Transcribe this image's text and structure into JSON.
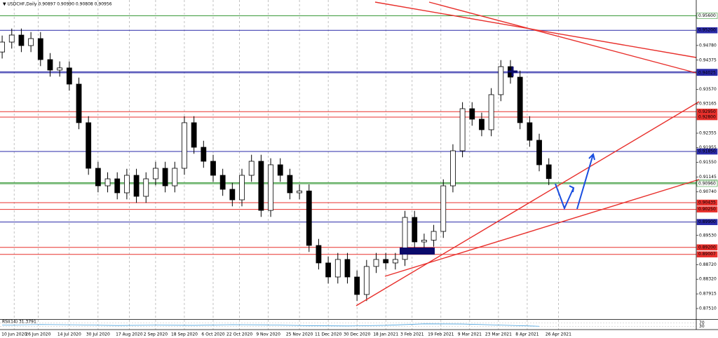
{
  "chart_data": {
    "type": "candlestick",
    "title": "▼ USDCHF,Daily  0.90897 0.90990 0.90808 0.90956",
    "grid": "vertical",
    "up_color": "#ffffff",
    "down_color": "#000000",
    "edge_color": "#000000",
    "x": [
      0,
      4,
      8,
      12,
      16,
      20,
      24,
      28,
      32,
      36,
      40,
      44,
      48,
      52,
      56,
      60,
      64,
      68,
      72,
      76,
      80,
      84,
      88,
      92,
      96,
      100,
      104,
      108,
      112,
      116,
      120,
      124,
      128,
      132,
      136,
      140,
      144,
      148,
      152,
      156,
      160,
      164,
      168,
      172,
      176,
      180,
      184,
      188,
      192,
      196,
      200,
      204,
      208,
      212,
      216,
      220,
      224,
      228
    ],
    "open": [
      0.946,
      0.94874,
      0.95068,
      0.94777,
      0.94971,
      0.9439,
      0.94099,
      0.9416,
      0.93712,
      0.92646,
      0.91386,
      0.90901,
      0.91095,
      0.90708,
      0.91192,
      0.90611,
      0.91095,
      0.91386,
      0.90901,
      0.91386,
      0.92646,
      0.91967,
      0.9158,
      0.91192,
      0.90805,
      0.90514,
      0.91192,
      0.9158,
      0.90223,
      0.91483,
      0.91192,
      0.90708,
      0.9076,
      0.89254,
      0.8877,
      0.88382,
      0.88867,
      0.88382,
      0.87898,
      0.88673,
      0.88867,
      0.8877,
      0.88867,
      0.90029,
      0.89351,
      0.894,
      0.89642,
      0.90901,
      0.9187,
      0.93033,
      0.92743,
      0.92452,
      0.93421,
      0.94196,
      0.93905,
      0.92646,
      0.92161,
      0.91483
    ],
    "high": [
      0.95054,
      0.95248,
      0.95248,
      0.95151,
      0.95151,
      0.9457,
      0.9434,
      0.9434,
      0.93892,
      0.92826,
      0.91566,
      0.91275,
      0.91275,
      0.91372,
      0.91372,
      0.91275,
      0.91566,
      0.91566,
      0.91566,
      0.92826,
      0.92826,
      0.92147,
      0.9176,
      0.91372,
      0.90985,
      0.91372,
      0.9176,
      0.9176,
      0.91663,
      0.91663,
      0.91372,
      0.9094,
      0.9094,
      0.89434,
      0.8895,
      0.89047,
      0.89047,
      0.88562,
      0.88853,
      0.89047,
      0.89047,
      0.89047,
      0.90209,
      0.90209,
      0.8958,
      0.89822,
      0.91081,
      0.9205,
      0.93213,
      0.93213,
      0.92923,
      0.93601,
      0.94376,
      0.94376,
      0.94085,
      0.92826,
      0.92341,
      0.91663
    ],
    "low": [
      0.9442,
      0.94694,
      0.94597,
      0.94597,
      0.9421,
      0.93919,
      0.93919,
      0.93532,
      0.92466,
      0.91206,
      0.90721,
      0.90721,
      0.90528,
      0.90528,
      0.90431,
      0.90431,
      0.90915,
      0.90721,
      0.90721,
      0.91206,
      0.91787,
      0.914,
      0.91012,
      0.90625,
      0.90334,
      0.90334,
      0.91012,
      0.90043,
      0.90043,
      0.91012,
      0.90528,
      0.90528,
      0.89074,
      0.8859,
      0.88202,
      0.88202,
      0.88202,
      0.87718,
      0.87718,
      0.88493,
      0.8859,
      0.8859,
      0.88687,
      0.89171,
      0.89171,
      0.8922,
      0.89462,
      0.90721,
      0.9169,
      0.92563,
      0.92272,
      0.92272,
      0.93241,
      0.93725,
      0.92466,
      0.91981,
      0.91303,
      0.9092
    ],
    "close": [
      0.94874,
      0.95068,
      0.94777,
      0.94971,
      0.9439,
      0.94099,
      0.9416,
      0.93712,
      0.92646,
      0.91386,
      0.90901,
      0.91095,
      0.90708,
      0.91192,
      0.90611,
      0.91095,
      0.91386,
      0.90901,
      0.91386,
      0.92646,
      0.91967,
      0.9158,
      0.91192,
      0.90805,
      0.90514,
      0.91192,
      0.9158,
      0.90223,
      0.91483,
      0.91192,
      0.90708,
      0.9076,
      0.89254,
      0.8877,
      0.88382,
      0.88867,
      0.88382,
      0.87898,
      0.88673,
      0.88867,
      0.8877,
      0.88867,
      0.90029,
      0.89351,
      0.894,
      0.89642,
      0.90901,
      0.9187,
      0.93033,
      0.92743,
      0.92452,
      0.93421,
      0.94196,
      0.93905,
      0.92646,
      0.92161,
      0.91483,
      0.911
    ],
    "xlim": [
      -0.9,
      289.5
    ],
    "xticks": [
      {
        "value": 5,
        "label": "10 Jun 2020"
      },
      {
        "value": 15,
        "label": "26 Jun 2020"
      },
      {
        "value": 28,
        "label": "14 Jul 2020"
      },
      {
        "value": 40,
        "label": "30 Jul 2020"
      },
      {
        "value": 53,
        "label": "17 Aug 2020"
      },
      {
        "value": 64,
        "label": "2 Sep 2020"
      },
      {
        "value": 76,
        "label": "18 Sep 2020"
      },
      {
        "value": 88,
        "label": "6 Oct 2020"
      },
      {
        "value": 99,
        "label": "22 Oct 2020"
      },
      {
        "value": 111,
        "label": "9 Nov 2020"
      },
      {
        "value": 124,
        "label": "25 Nov 2020"
      },
      {
        "value": 136,
        "label": "11 Dec 2020"
      },
      {
        "value": 148,
        "label": "30 Dec 2020"
      },
      {
        "value": 160,
        "label": "18 Jan 2021"
      },
      {
        "value": 171,
        "label": "3 Feb 2021"
      },
      {
        "value": 183,
        "label": "19 Feb 2021"
      },
      {
        "value": 195,
        "label": "9 Mar 2021"
      },
      {
        "value": 207,
        "label": "23 Mar 2021"
      },
      {
        "value": 219,
        "label": "8 Apr 2021"
      },
      {
        "value": 232,
        "label": "26 Apr 2021"
      }
    ],
    "ylim": [
      0.87219,
      0.96037
    ],
    "yticks": [
      {
        "value": 0.9478,
        "label": "0.94780"
      },
      {
        "value": 0.94375,
        "label": "0.94375"
      },
      {
        "value": 0.9357,
        "label": "0.93570"
      },
      {
        "value": 0.93165,
        "label": "0.93165"
      },
      {
        "value": 0.92355,
        "label": "0.92355"
      },
      {
        "value": 0.91955,
        "label": "0.91955"
      },
      {
        "value": 0.9155,
        "label": "0.91550"
      },
      {
        "value": 0.91145,
        "label": "0.91145"
      },
      {
        "value": 0.9074,
        "label": "0.90740"
      },
      {
        "value": 0.8953,
        "label": "0.89530"
      },
      {
        "value": 0.8872,
        "label": "0.88720"
      },
      {
        "value": 0.8832,
        "label": "0.88320"
      },
      {
        "value": 0.87915,
        "label": "0.87915"
      },
      {
        "value": 0.8751,
        "label": "0.87510"
      }
    ],
    "levels": [
      {
        "value": 0.956,
        "label": "0.95600",
        "color": "#3a9a3a"
      },
      {
        "value": 0.952,
        "label": "0.95200",
        "color": "#2a2aa8"
      },
      {
        "value": 0.9405,
        "label": "0.94050",
        "color": "#2a2aa8"
      },
      {
        "value": 0.94025,
        "label": "0.94025",
        "color": "#2a2aa8"
      },
      {
        "value": 0.9295,
        "label": "0.92950",
        "color": "#e8302c"
      },
      {
        "value": 0.928,
        "label": "0.92800",
        "color": "#e8302c"
      },
      {
        "value": 0.9185,
        "label": "0.91850",
        "color": "#2a2aa8"
      },
      {
        "value": 0.90985,
        "label": "0.90985",
        "color": "#3a9a3a"
      },
      {
        "value": 0.9096,
        "label": "0.90960",
        "color": "#3a9a3a"
      },
      {
        "value": 0.90435,
        "label": "0.90435",
        "color": "#e8302c"
      },
      {
        "value": 0.9025,
        "label": "0.90250",
        "color": "#e8302c"
      },
      {
        "value": 0.899,
        "label": "0.89900",
        "color": "#2a2aa8"
      },
      {
        "value": 0.892,
        "label": "0.89200",
        "color": "#e8302c"
      },
      {
        "value": 0.89007,
        "label": "0.89007",
        "color": "#e8302c"
      }
    ],
    "rsi": {
      "title": "RSI(14) 31.3791",
      "color": "#4aa3df",
      "x": [
        0,
        16,
        32,
        48,
        64,
        80,
        96,
        112,
        128,
        144,
        160,
        176,
        192,
        208,
        224
      ],
      "values": [
        45,
        52,
        48,
        40,
        45,
        42,
        50,
        47,
        38,
        35,
        42,
        60,
        58,
        45,
        31.3791
      ],
      "ylim": [
        0,
        100
      ],
      "yticks": [
        30,
        70
      ]
    }
  }
}
